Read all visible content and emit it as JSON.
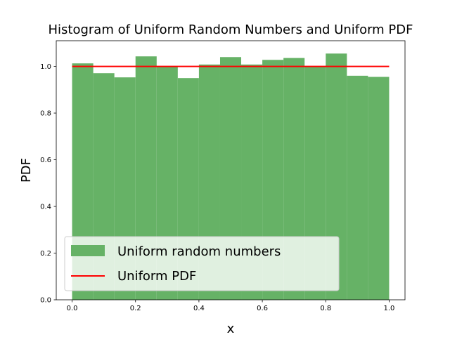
{
  "chart_data": {
    "type": "bar",
    "title": "Histogram of Uniform Random Numbers and Uniform PDF",
    "xlabel": "x",
    "ylabel": "PDF",
    "xlim": [
      -0.05,
      1.05
    ],
    "ylim": [
      0,
      1.11
    ],
    "xticks": [
      "0.0",
      "0.2",
      "0.4",
      "0.6",
      "0.8",
      "1.0"
    ],
    "yticks": [
      "0.0",
      "0.2",
      "0.4",
      "0.6",
      "0.8",
      "1.0"
    ],
    "grid": false,
    "legend_position": "lower-left",
    "bin_edges": [
      0.0,
      0.0667,
      0.1333,
      0.2,
      0.2667,
      0.3333,
      0.4,
      0.4667,
      0.5333,
      0.6,
      0.6667,
      0.7333,
      0.8,
      0.8667,
      0.9333,
      1.0
    ],
    "series": [
      {
        "name": "Uniform random numbers",
        "kind": "histogram",
        "color": "#66b266",
        "values": [
          1.013,
          0.971,
          0.953,
          1.043,
          0.998,
          0.95,
          1.008,
          1.04,
          1.008,
          1.028,
          1.036,
          0.998,
          1.055,
          0.96,
          0.955
        ]
      },
      {
        "name": "Uniform PDF",
        "kind": "line",
        "color": "#ff0000",
        "x": [
          0.0,
          1.0
        ],
        "y": [
          1.0,
          1.0
        ]
      }
    ]
  }
}
